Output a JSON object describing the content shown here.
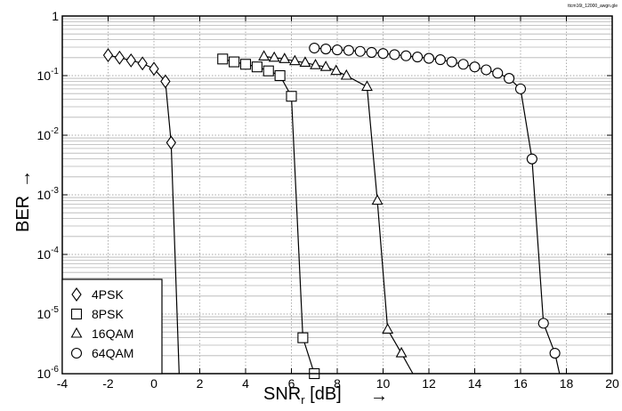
{
  "chart_data": {
    "type": "line",
    "file_label": "ttcm16t_12000_awgn.gle",
    "xlabel_main": "SNR",
    "xlabel_sub": "r",
    "xlabel_unit": " [dB]",
    "ylabel": "BER",
    "arrow": "→",
    "xlim": [
      -4,
      20
    ],
    "ylim": [
      1e-06,
      1
    ],
    "yscale": "log",
    "grid": true,
    "x_ticks": [
      "-4",
      "-2",
      "0",
      "2",
      "4",
      "6",
      "8",
      "10",
      "12",
      "14",
      "16",
      "18",
      "20"
    ],
    "y_ticks": [
      {
        "base": "1",
        "exp": ""
      },
      {
        "base": "10",
        "exp": "-1"
      },
      {
        "base": "10",
        "exp": "-2"
      },
      {
        "base": "10",
        "exp": "-3"
      },
      {
        "base": "10",
        "exp": "-4"
      },
      {
        "base": "10",
        "exp": "-5"
      },
      {
        "base": "10",
        "exp": "-6"
      }
    ],
    "legend_position": "bottom-left",
    "series": [
      {
        "name": "4PSK",
        "marker": "diamond",
        "x": [
          -2.0,
          -1.5,
          -1.0,
          -0.5,
          0.0,
          0.5,
          0.75
        ],
        "y": [
          0.22,
          0.2,
          0.18,
          0.16,
          0.13,
          0.08,
          0.0075
        ],
        "tail": [
          [
            0.75,
            0.0075
          ],
          [
            1.1,
            1e-06
          ]
        ]
      },
      {
        "name": "8PSK",
        "marker": "square",
        "x": [
          3.0,
          3.5,
          4.0,
          4.5,
          5.0,
          5.5,
          6.0,
          6.5,
          7.0
        ],
        "y": [
          0.19,
          0.17,
          0.155,
          0.14,
          0.12,
          0.1,
          0.045,
          4e-06,
          1e-06
        ],
        "tail": []
      },
      {
        "name": "16QAM",
        "marker": "triangle",
        "x": [
          4.8,
          5.25,
          5.7,
          6.15,
          6.6,
          7.05,
          7.5,
          7.95,
          8.4,
          9.3,
          9.75,
          10.2,
          10.8
        ],
        "y": [
          0.21,
          0.2,
          0.19,
          0.175,
          0.165,
          0.15,
          0.14,
          0.12,
          0.1,
          0.065,
          0.0008,
          5.5e-06,
          2.2e-06
        ],
        "tail": [
          [
            10.8,
            2.2e-06
          ],
          [
            11.3,
            1e-06
          ]
        ]
      },
      {
        "name": "64QAM",
        "marker": "circle",
        "x": [
          7.0,
          7.5,
          8.0,
          8.5,
          9.0,
          9.5,
          10.0,
          10.5,
          11.0,
          11.5,
          12.0,
          12.5,
          13.0,
          13.5,
          14.0,
          14.5,
          15.0,
          15.5,
          16.0,
          16.5,
          17.0,
          17.5
        ],
        "y": [
          0.29,
          0.28,
          0.27,
          0.265,
          0.255,
          0.245,
          0.235,
          0.225,
          0.215,
          0.205,
          0.195,
          0.185,
          0.17,
          0.155,
          0.14,
          0.125,
          0.11,
          0.09,
          0.06,
          0.004,
          7e-06,
          2.2e-06
        ],
        "tail": [
          [
            17.5,
            2.2e-06
          ],
          [
            17.7,
            1e-06
          ]
        ]
      }
    ]
  }
}
